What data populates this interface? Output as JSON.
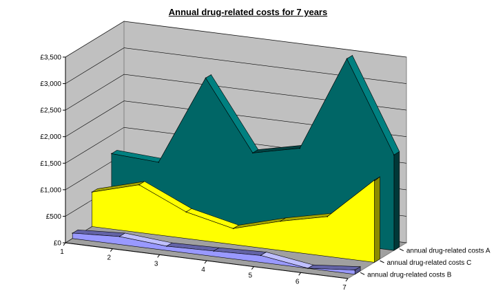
{
  "chart_data": {
    "type": "area",
    "title": "Annual drug-related costs for 7 years",
    "categories": [
      "1",
      "2",
      "3",
      "4",
      "5",
      "6",
      "7"
    ],
    "ylim": [
      0,
      3500
    ],
    "yticks": [
      "£0",
      "£500",
      "£1,000",
      "£1,500",
      "£2,000",
      "£2,500",
      "£3,000",
      "£3,500"
    ],
    "grid": true,
    "legend_position": "right",
    "series": [
      {
        "name": "annual drug-related costs A",
        "color": "#006666",
        "values": [
          1150,
          1100,
          2800,
          1500,
          1700,
          3500,
          1800
        ]
      },
      {
        "name": "annual drug-related costs C",
        "color": "#ffff00",
        "values": [
          650,
          900,
          500,
          300,
          550,
          750,
          1550
        ]
      },
      {
        "name": "annual drug-related costs B",
        "color": "#9999ff",
        "values": [
          100,
          150,
          80,
          100,
          130,
          0,
          80
        ]
      }
    ]
  }
}
